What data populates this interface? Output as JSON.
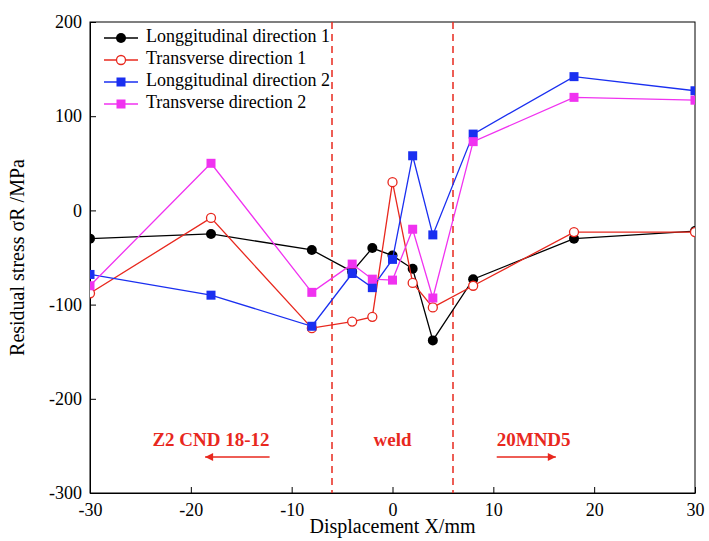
{
  "chart_data": {
    "type": "line",
    "x_label": "Displacement X/mm",
    "y_label": "Residual stress σR /MPa",
    "x": [
      -30,
      -18,
      -8,
      -4,
      -2,
      0,
      2,
      4,
      8,
      18,
      30
    ],
    "series": [
      {
        "name": "Longgitudinal direction 1",
        "color": "#000000",
        "marker": "circle",
        "line_style": "solid",
        "values": [
          -30,
          -25,
          -42,
          -65,
          -40,
          -48,
          -62,
          -138,
          -73,
          -30,
          -22
        ]
      },
      {
        "name": "Transverse direction 1",
        "color": "#e8281e",
        "marker": "circle-open",
        "line_style": "solid",
        "values": [
          -88,
          -8,
          -125,
          -118,
          -113,
          30,
          -77,
          -103,
          -80,
          -23,
          -23
        ]
      },
      {
        "name": "Longgitudinal direction 2",
        "color": "#1a2ff0",
        "marker": "square",
        "line_style": "solid",
        "values": [
          -68,
          -90,
          -123,
          -67,
          -82,
          -52,
          58,
          -26,
          81,
          142,
          127
        ]
      },
      {
        "name": "Transverse direction 2",
        "color": "#f032f0",
        "marker": "square",
        "line_style": "solid",
        "values": [
          -80,
          50,
          -87,
          -57,
          -73,
          -74,
          -20,
          -93,
          73,
          120,
          117
        ]
      }
    ],
    "xlim": [
      -30,
      30
    ],
    "xticks": [
      -30,
      -20,
      -10,
      0,
      10,
      20,
      30
    ],
    "ylim": [
      -300,
      200
    ],
    "yticks": [
      -300,
      -200,
      -100,
      0,
      100,
      200
    ],
    "legend": "top-left",
    "grid": false,
    "reference_lines": {
      "x": [
        -6,
        6
      ],
      "color": "#e8281e",
      "line_style": "dashed"
    },
    "annotations": [
      {
        "text": "Z2 CND 18-12",
        "x": -18,
        "y": -245,
        "color": "#e8281e",
        "arrow": "left"
      },
      {
        "text": "weld",
        "x": 0,
        "y": -245,
        "color": "#e8281e",
        "arrow": "none"
      },
      {
        "text": "20MND5",
        "x": 14,
        "y": -245,
        "color": "#e8281e",
        "arrow": "right"
      }
    ]
  }
}
